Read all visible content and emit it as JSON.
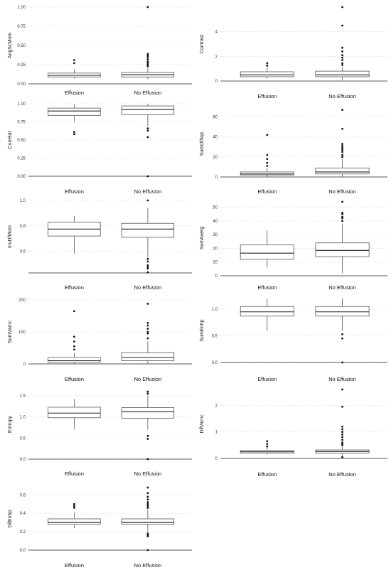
{
  "chart_data": [
    {
      "type": "box",
      "ylabel": "AngScMom",
      "categories": [
        "Effusion",
        "No Effusion"
      ],
      "yticks": [
        "0.00",
        "0.25",
        "0.50",
        "0.75",
        "1.00"
      ],
      "ylim": [
        0,
        1.0
      ],
      "series": [
        {
          "min": 0.07,
          "q1": 0.09,
          "median": 0.11,
          "q3": 0.14,
          "max": 0.19,
          "outliers": [
            0.27,
            0.31
          ]
        },
        {
          "min": 0.06,
          "q1": 0.09,
          "median": 0.12,
          "q3": 0.15,
          "max": 0.21,
          "outliers": [
            0.23,
            0.25,
            0.27,
            0.29,
            0.32,
            0.35,
            0.37,
            0.39,
            1.0
          ]
        }
      ]
    },
    {
      "type": "box",
      "ylabel": "Contrast",
      "categories": [
        "Effusion",
        "No Effusion"
      ],
      "yticks": [
        "0",
        "2",
        "4"
      ],
      "ylim": [
        0,
        6
      ],
      "series": [
        {
          "min": 0.2,
          "q1": 0.35,
          "median": 0.5,
          "q3": 0.75,
          "max": 1.1,
          "outliers": [
            1.25,
            1.45
          ]
        },
        {
          "min": 0.1,
          "q1": 0.35,
          "median": 0.5,
          "q3": 0.8,
          "max": 1.15,
          "outliers": [
            1.3,
            1.45,
            1.7,
            1.9,
            2.1,
            2.4,
            2.7,
            4.5,
            6.0
          ]
        }
      ]
    },
    {
      "type": "box",
      "ylabel": "Correlat",
      "categories": [
        "Effusion",
        "No Effusion"
      ],
      "yticks": [
        "0.00",
        "0.25",
        "0.50",
        "0.75",
        "1.00"
      ],
      "ylim": [
        0,
        1.0
      ],
      "series": [
        {
          "min": 0.75,
          "q1": 0.84,
          "median": 0.9,
          "q3": 0.94,
          "max": 0.99,
          "outliers": [
            0.58,
            0.61
          ]
        },
        {
          "min": 0.69,
          "q1": 0.85,
          "median": 0.92,
          "q3": 0.97,
          "max": 1.0,
          "outliers": [
            0.54,
            0.63,
            0.66,
            0.0
          ]
        }
      ]
    },
    {
      "type": "box",
      "ylabel": "SumOfSqs",
      "categories": [
        "Effusion",
        "No Effusion"
      ],
      "yticks": [
        "0",
        "20",
        "40",
        "60"
      ],
      "ylim": [
        0,
        66
      ],
      "series": [
        {
          "min": 0,
          "q1": 2,
          "median": 3,
          "q3": 5,
          "max": 9,
          "outliers": [
            11,
            14,
            18,
            22,
            42
          ]
        },
        {
          "min": 0,
          "q1": 3,
          "median": 5,
          "q3": 9,
          "max": 18,
          "outliers": [
            20,
            22,
            25,
            27,
            29,
            31,
            33,
            48,
            67
          ]
        }
      ]
    },
    {
      "type": "box",
      "ylabel": "InvDfMom",
      "categories": [
        "Effusion",
        "No Effusion"
      ],
      "yticks": [
        "0.6",
        "0.8",
        "1.0"
      ],
      "ylim": [
        0.43,
        1.0
      ],
      "series": [
        {
          "min": 0.58,
          "q1": 0.72,
          "median": 0.775,
          "q3": 0.83,
          "max": 0.88,
          "outliers": []
        },
        {
          "min": 0.55,
          "q1": 0.71,
          "median": 0.775,
          "q3": 0.82,
          "max": 0.94,
          "outliers": [
            0.54,
            0.52,
            0.49,
            0.475,
            0.465,
            0.435,
            1.0
          ]
        }
      ]
    },
    {
      "type": "box",
      "ylabel": "SumAverg",
      "categories": [
        "Effusion",
        "No Effusion"
      ],
      "yticks": [
        "0",
        "10",
        "20",
        "30",
        "40",
        "50"
      ],
      "ylim": [
        0,
        55
      ],
      "series": [
        {
          "min": 6,
          "q1": 12,
          "median": 16.5,
          "q3": 22.5,
          "max": 33,
          "outliers": []
        },
        {
          "min": 2,
          "q1": 14,
          "median": 18.5,
          "q3": 24,
          "max": 38,
          "outliers": [
            40,
            42,
            43,
            45,
            46,
            54
          ]
        }
      ]
    },
    {
      "type": "box",
      "ylabel": "SumVarnc",
      "categories": [
        "Effusion",
        "No Effusion"
      ],
      "yticks": [
        "0",
        "100",
        "200"
      ],
      "ylim": [
        0,
        200
      ],
      "series": [
        {
          "min": 0,
          "q1": 5,
          "median": 10,
          "q3": 20,
          "max": 35,
          "outliers": [
            45,
            55,
            70,
            85,
            165
          ]
        },
        {
          "min": 0,
          "q1": 10,
          "median": 20,
          "q3": 35,
          "max": 70,
          "outliers": [
            80,
            95,
            100,
            110,
            120,
            128,
            188
          ]
        }
      ]
    },
    {
      "type": "box",
      "ylabel": "SumEntrp",
      "categories": [
        "Effusion",
        "No Effusion"
      ],
      "yticks": [
        "0.0",
        "0.5",
        "1.0"
      ],
      "ylim": [
        0,
        1.2
      ],
      "series": [
        {
          "min": 0.6,
          "q1": 0.87,
          "median": 0.95,
          "q3": 1.05,
          "max": 1.2,
          "outliers": []
        },
        {
          "min": 0.6,
          "q1": 0.87,
          "median": 0.95,
          "q3": 1.05,
          "max": 1.2,
          "outliers": [
            0.53,
            0.45,
            0.0
          ]
        }
      ]
    },
    {
      "type": "box",
      "ylabel": "Entropy",
      "categories": [
        "Effusion",
        "No Effusion"
      ],
      "yticks": [
        "0.0",
        "0.5",
        "1.0",
        "1.5"
      ],
      "ylim": [
        0,
        1.65
      ],
      "series": [
        {
          "min": 0.7,
          "q1": 0.98,
          "median": 1.09,
          "q3": 1.23,
          "max": 1.42,
          "outliers": []
        },
        {
          "min": 0.7,
          "q1": 0.97,
          "median": 1.12,
          "q3": 1.22,
          "max": 1.5,
          "outliers": [
            1.55,
            1.6,
            0.55,
            0.48,
            0.0
          ]
        }
      ]
    },
    {
      "type": "box",
      "ylabel": "DifVarnc",
      "categories": [
        "Effusion",
        "No Effusion"
      ],
      "yticks": [
        "0",
        "1",
        "2"
      ],
      "ylim": [
        0,
        2.6
      ],
      "series": [
        {
          "min": 0.15,
          "q1": 0.2,
          "median": 0.25,
          "q3": 0.3,
          "max": 0.4,
          "outliers": [
            0.45,
            0.55,
            0.65
          ]
        },
        {
          "min": 0.1,
          "q1": 0.2,
          "median": 0.26,
          "q3": 0.32,
          "max": 0.45,
          "outliers": [
            0.5,
            0.55,
            0.6,
            0.7,
            0.8,
            0.9,
            1.0,
            1.1,
            1.2,
            1.95,
            2.6,
            0.05
          ]
        }
      ]
    },
    {
      "type": "box",
      "ylabel": "DifEntrp",
      "categories": [
        "Effusion",
        "No Effusion"
      ],
      "yticks": [
        "0.0",
        "0.2",
        "0.4",
        "0.6"
      ],
      "ylim": [
        0,
        0.68
      ],
      "series": [
        {
          "min": 0.24,
          "q1": 0.28,
          "median": 0.3,
          "q3": 0.34,
          "max": 0.41,
          "outliers": [
            0.46,
            0.48,
            0.5
          ]
        },
        {
          "min": 0.2,
          "q1": 0.28,
          "median": 0.3,
          "q3": 0.34,
          "max": 0.44,
          "outliers": [
            0.46,
            0.48,
            0.5,
            0.52,
            0.55,
            0.58,
            0.62,
            0.68,
            0.18,
            0.16,
            0.15,
            0.0
          ]
        }
      ]
    }
  ]
}
